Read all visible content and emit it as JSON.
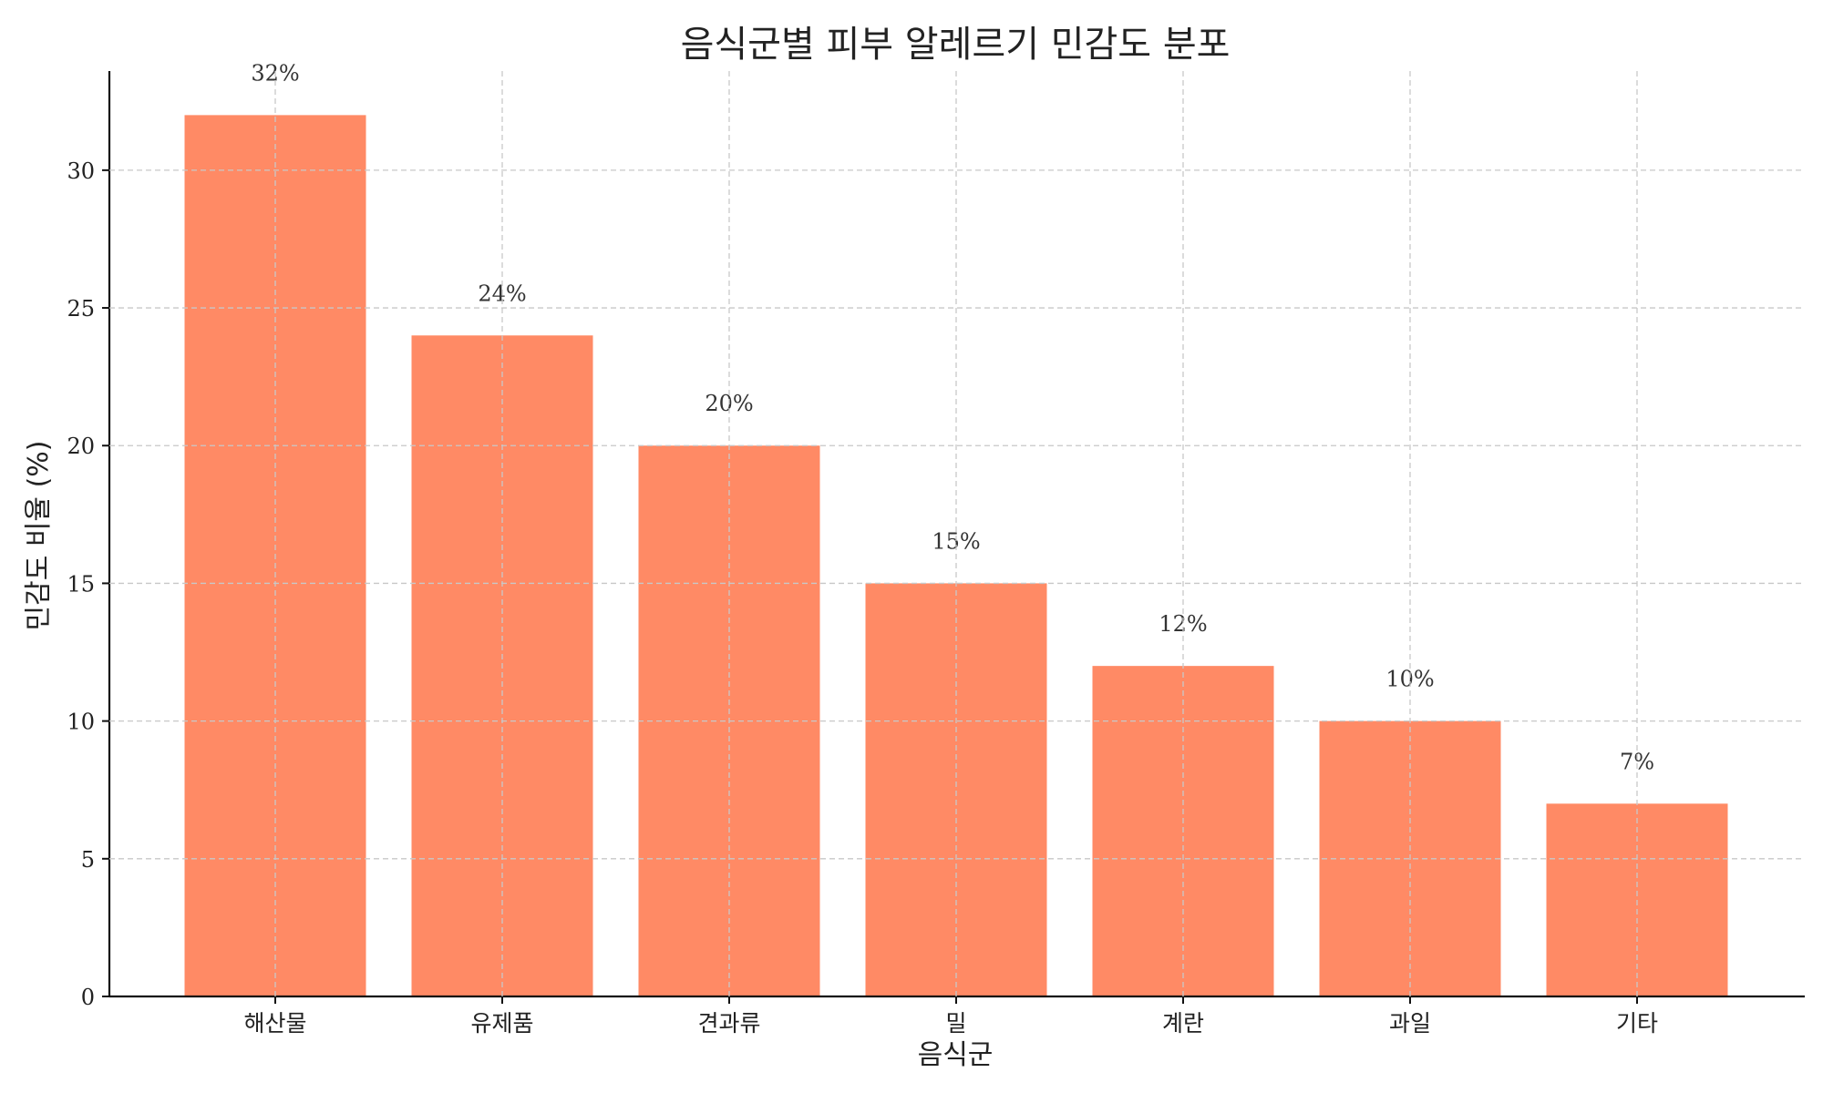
{
  "chart_data": {
    "type": "bar",
    "title": "음식군별 피부 알레르기 민감도 분포",
    "xlabel": "음식군",
    "ylabel": "민감도 비율 (%)",
    "categories": [
      "해산물",
      "유제품",
      "견과류",
      "밀",
      "계란",
      "과일",
      "기타"
    ],
    "values": [
      32,
      24,
      20,
      15,
      12,
      10,
      7
    ],
    "data_labels": [
      "32%",
      "24%",
      "20%",
      "15%",
      "12%",
      "10%",
      "7%"
    ],
    "yticks": [
      0,
      5,
      10,
      15,
      20,
      25,
      30
    ],
    "ytick_labels": [
      "0",
      "5",
      "10",
      "15",
      "20",
      "25",
      "30"
    ],
    "ylim": [
      0,
      33.6
    ],
    "grid": true,
    "legend": "none",
    "bar_color": "#ff8a65"
  }
}
